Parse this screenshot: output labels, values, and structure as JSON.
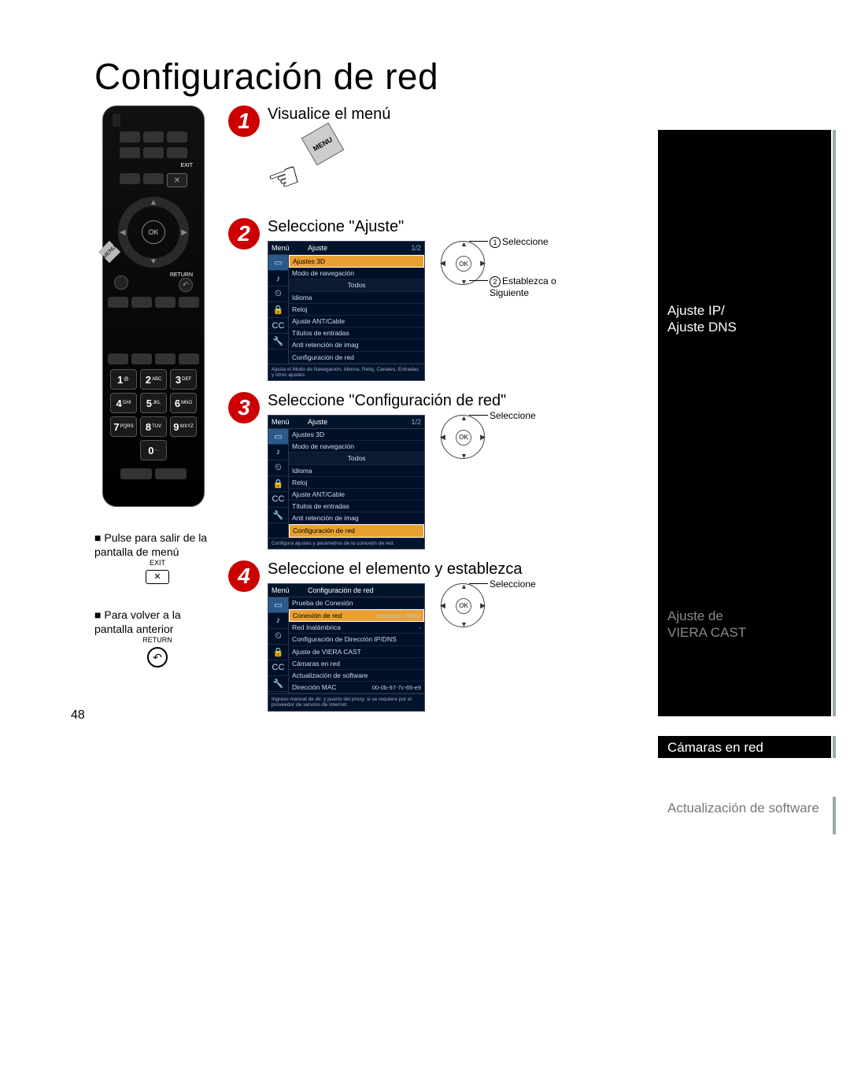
{
  "page_number": "48",
  "title": "Configuración de red",
  "remote": {
    "exit_label": "EXIT",
    "exit_glyph": "✕",
    "ok_label": "OK",
    "menu_label": "MENU",
    "return_label": "RETURN",
    "return_glyph": "↶",
    "keys": [
      {
        "n": "1",
        "s": "@."
      },
      {
        "n": "2",
        "s": "ABC"
      },
      {
        "n": "3",
        "s": "DEF"
      },
      {
        "n": "4",
        "s": "GHI"
      },
      {
        "n": "5",
        "s": "JKL"
      },
      {
        "n": "6",
        "s": "MNO"
      },
      {
        "n": "7",
        "s": "PQRS"
      },
      {
        "n": "8",
        "s": "TUV"
      },
      {
        "n": "9",
        "s": "WXYZ"
      },
      {
        "n": "",
        "s": ""
      },
      {
        "n": "0",
        "s": "- ."
      },
      {
        "n": "",
        "s": ""
      }
    ]
  },
  "notes": {
    "exit_title": "Pulse para salir de la pantalla de menú",
    "exit_small": "EXIT",
    "exit_glyph": "✕",
    "return_title": "Para volver a la pantalla anterior",
    "return_small": "RETURN",
    "return_glyph": "↶"
  },
  "steps": {
    "s1": {
      "num": "1",
      "title": "Visualice el menú",
      "menu_tag": "MENU"
    },
    "s2": {
      "num": "2",
      "title": "Seleccione \"Ajuste\"",
      "screen": {
        "menu": "Menú",
        "header": "Ajuste",
        "page": "1/2",
        "items": [
          "Ajustes 3D",
          "Modo de navegación",
          "Todos",
          "Idioma",
          "Reloj",
          "Ajuste ANT/Cable",
          "Títulos de entradas",
          "Anti retención de imag",
          "Configuración de red"
        ],
        "footer": "Ajusta el Modo de Navegación, Idioma, Reloj, Canales, Entradas y otros ajustes."
      },
      "nav": {
        "ok": "OK",
        "c1_num": "1",
        "c1": "Seleccione",
        "c2_num": "2",
        "c2": "Establezca o Siguiente"
      }
    },
    "s3": {
      "num": "3",
      "title": "Seleccione \"Configuración de red\"",
      "screen": {
        "menu": "Menú",
        "header": "Ajuste",
        "page": "1/2",
        "items": [
          "Ajustes 3D",
          "Modo de navegación",
          "Todos",
          "Idioma",
          "Reloj",
          "Ajuste ANT/Cable",
          "Títulos de entradas",
          "Anti retención de imag",
          "Configuración de red"
        ],
        "footer": "Configura ajustes y parámetros de la conexión de red."
      },
      "nav": {
        "ok": "OK",
        "c1": "Seleccione"
      }
    },
    "s4": {
      "num": "4",
      "title": "Seleccione el elemento y establezca",
      "screen": {
        "menu": "Menú",
        "header": "Configuración de red",
        "page": "",
        "items": [
          {
            "l": "Prueba de Conexión",
            "v": ""
          },
          {
            "l": "Conexión de red",
            "v": "Inalámbri. (WiFi)"
          },
          {
            "l": "Red Inalámbrica",
            "v": "-"
          },
          {
            "l": "Configuración de Dirección IP/DNS",
            "v": ""
          },
          {
            "l": "Ajuste de VIERA CAST",
            "v": ""
          },
          {
            "l": "Cámaras en red",
            "v": ""
          },
          {
            "l": "Actualización de software",
            "v": ""
          },
          {
            "l": "Dirección MAC",
            "v": "00-0b-97-7c-65-e9"
          }
        ],
        "footer": "Ingreso manual de dir. y puerto del proxy, si se requiere por el proveedor de servicio de Internet."
      },
      "nav": {
        "ok": "OK",
        "c1": "Seleccione"
      }
    }
  },
  "sidebar": {
    "ip_dns": "Ajuste IP/\nAjuste DNS",
    "viera": "Ajuste de\nVIERA CAST",
    "cameras": "Cámaras en red",
    "software": "Actualización de software"
  },
  "colors": {
    "step_red": "#c00",
    "screen_bg": "#001028",
    "highlight": "#e8a030"
  }
}
